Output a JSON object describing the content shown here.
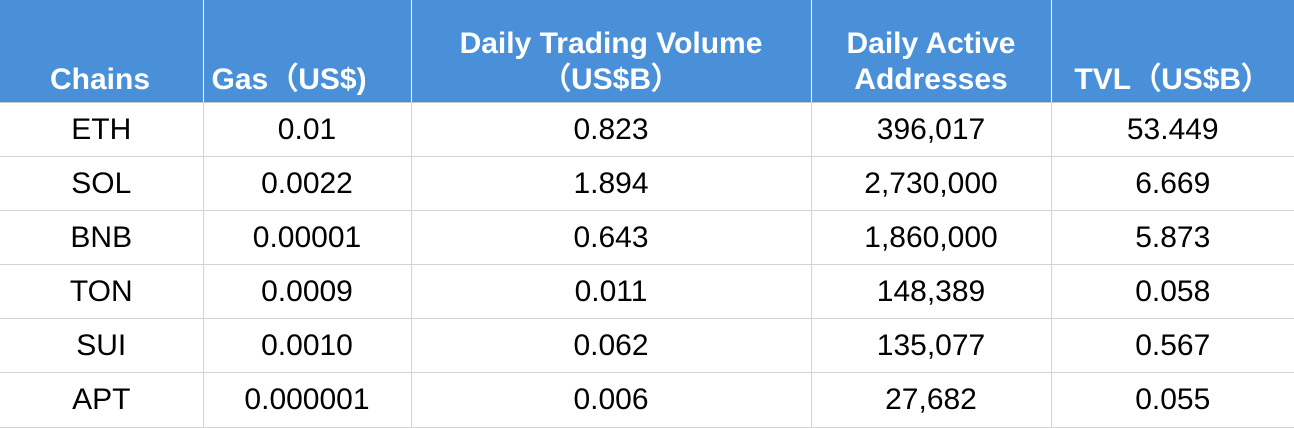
{
  "table": {
    "headers": [
      [
        "Chains"
      ],
      [
        "Gas（US$)"
      ],
      [
        "Daily Trading Volume",
        "（US$B）"
      ],
      [
        "Daily Active",
        "Addresses"
      ],
      [
        "TVL（US$B）"
      ]
    ],
    "rows": [
      [
        "ETH",
        "0.01",
        "0.823",
        "396,017",
        "53.449"
      ],
      [
        "SOL",
        "0.0022",
        "1.894",
        "2,730,000",
        "6.669"
      ],
      [
        "BNB",
        "0.00001",
        "0.643",
        "1,860,000",
        "5.873"
      ],
      [
        "TON",
        "0.0009",
        "0.011",
        "148,389",
        "0.058"
      ],
      [
        "SUI",
        "0.0010",
        "0.062",
        "135,077",
        "0.567"
      ],
      [
        "APT",
        "0.000001",
        "0.006",
        "27,682",
        "0.055"
      ]
    ]
  },
  "colors": {
    "header_bg": "#4a90d9",
    "header_text": "#ffffff",
    "grid": "#d4d4d4"
  }
}
